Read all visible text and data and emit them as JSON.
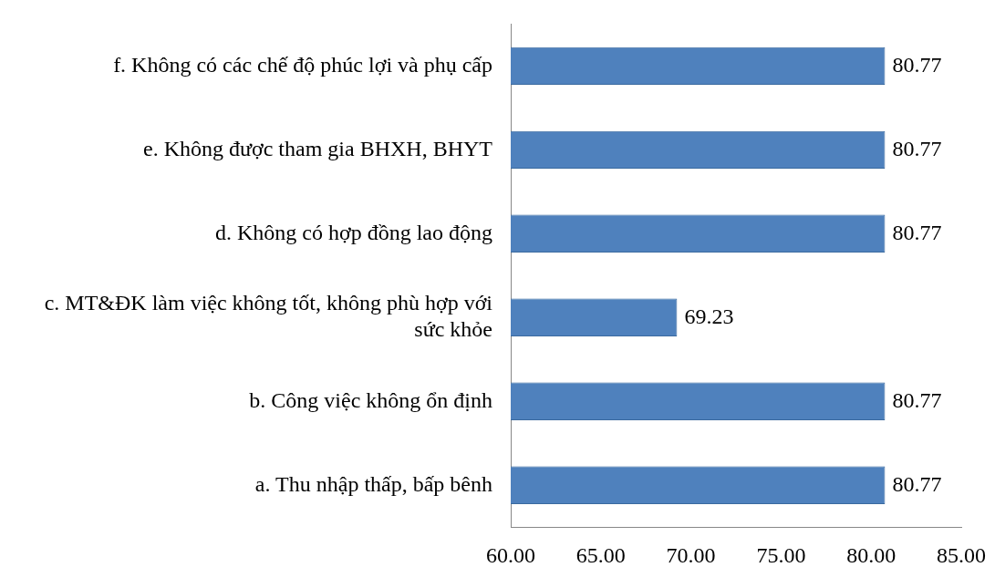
{
  "chart_data": {
    "type": "bar",
    "orientation": "horizontal",
    "categories": [
      "f. Không có các chế độ phúc lợi và phụ cấp",
      "e. Không được tham gia BHXH, BHYT",
      "d. Không có hợp đồng lao động",
      "c. MT&ĐK làm việc không tốt, không phù hợp với sức khỏe",
      "b. Công việc không ổn định",
      "a. Thu nhập thấp, bấp bênh"
    ],
    "values": [
      80.77,
      80.77,
      80.77,
      69.23,
      80.77,
      80.77
    ],
    "color": "#4f81bd",
    "xlim": [
      60,
      85
    ],
    "xticks": [
      {
        "value": 60,
        "label": "60.00"
      },
      {
        "value": 65,
        "label": "65.00"
      },
      {
        "value": 70,
        "label": "70.00"
      },
      {
        "value": 75,
        "label": "75.00"
      },
      {
        "value": 80,
        "label": "80.00"
      },
      {
        "value": 85,
        "label": "85.00"
      }
    ],
    "data_labels": true,
    "grid": false,
    "legend": false
  }
}
